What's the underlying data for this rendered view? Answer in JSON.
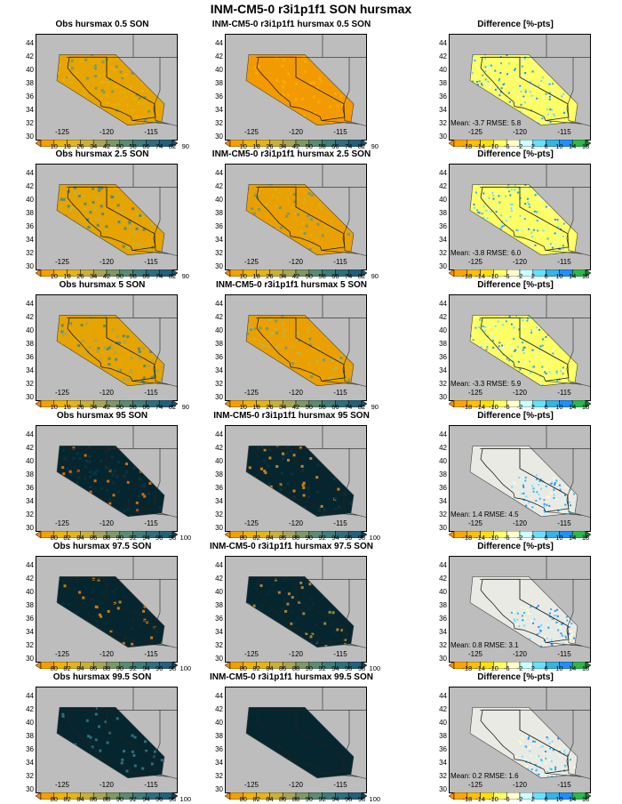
{
  "title": "INM-CM5-0 r3i1p1f1 SON hursmax",
  "lat_ticks": [
    "44",
    "42",
    "40",
    "38",
    "36",
    "34",
    "32",
    "30"
  ],
  "lon_ticks": [
    "-125",
    "-120",
    "-115"
  ],
  "scales": {
    "low": {
      "labels": [
        "10",
        "18",
        "26",
        "34",
        "42",
        "50",
        "58",
        "66",
        "74",
        "82",
        "90"
      ],
      "colors": [
        "#f08a00",
        "#f3a000",
        "#f2b400",
        "#e3b51b",
        "#c9b03a",
        "#a7a558",
        "#7e9867",
        "#5b8b72",
        "#3f7e7c",
        "#2f6f7d",
        "#24607a",
        "#1f5470"
      ]
    },
    "high": {
      "labels": [
        "80",
        "82",
        "84",
        "86",
        "88",
        "90",
        "92",
        "94",
        "96",
        "98",
        "100"
      ],
      "colors": [
        "#f08a00",
        "#f3a000",
        "#f2b400",
        "#e3b51b",
        "#c9b03a",
        "#a7a558",
        "#7e9867",
        "#5b8b72",
        "#3f7e7c",
        "#2f6f7d",
        "#24607a",
        "#163f4f"
      ]
    },
    "diff": {
      "labels": [
        "-18",
        "-14",
        "-10",
        "-6",
        "-2",
        "2",
        "6",
        "10",
        "14",
        "18"
      ],
      "colors": [
        "#ff8c00",
        "#ffa500",
        "#ffc000",
        "#ffe000",
        "#ffff66",
        "#ffffcc",
        "#ccffff",
        "#66e0ff",
        "#33b5e5",
        "#1e90ff",
        "#2db84d",
        "#1a7a2e"
      ]
    }
  },
  "rows": [
    {
      "obs_title": "Obs hursmax 0.5 SON",
      "model_title": "INM-CM5-0 r3i1p1f1 hursmax 0.5 SON",
      "diff_title": "Difference [%-pts]",
      "scale": "low",
      "obs_colors": [
        "#e8a500",
        "#e3b010",
        "#7c9a63"
      ],
      "model_colors": [
        "#f39a00",
        "#f7ad00",
        "#e7a010"
      ],
      "diff_fill": "#ffff66",
      "mean": "-3.7",
      "rmse": "5.8"
    },
    {
      "obs_title": "Obs hursmax 2.5 SON",
      "model_title": "INM-CM5-0 r3i1p1f1 hursmax 2.5 SON",
      "diff_title": "Difference [%-pts]",
      "scale": "low",
      "obs_colors": [
        "#e5a400",
        "#c9b03a",
        "#5b8b72"
      ],
      "model_colors": [
        "#eaa000",
        "#d9ad20",
        "#7e9867"
      ],
      "diff_fill": "#ffff66",
      "mean": "-3.8",
      "rmse": "6.0"
    },
    {
      "obs_title": "Obs hursmax 5 SON",
      "model_title": "INM-CM5-0 r3i1p1f1 hursmax 5 SON",
      "diff_title": "Difference [%-pts]",
      "scale": "low",
      "obs_colors": [
        "#e5a400",
        "#a7a558",
        "#5b8b72"
      ],
      "model_colors": [
        "#eaa000",
        "#c9b03a",
        "#7e9867"
      ],
      "diff_fill": "#ffff66",
      "mean": "-3.3",
      "rmse": "5.9"
    },
    {
      "obs_title": "Obs hursmax 95 SON",
      "model_title": "INM-CM5-0 r3i1p1f1 hursmax 95 SON",
      "diff_title": "Difference [%-pts]",
      "scale": "high",
      "obs_colors": [
        "#06262f",
        "#0a3340",
        "#d86a10"
      ],
      "model_colors": [
        "#06262f",
        "#0a3340",
        "#c9801a"
      ],
      "diff_fill": "#eaeae4",
      "mean": "1.4",
      "rmse": "4.5"
    },
    {
      "obs_title": "Obs hursmax 97.5 SON",
      "model_title": "INM-CM5-0 r3i1p1f1 hursmax 97.5 SON",
      "diff_title": "Difference [%-pts]",
      "scale": "high",
      "obs_colors": [
        "#06262f",
        "#082c37",
        "#c97a1a"
      ],
      "model_colors": [
        "#06262f",
        "#082c37",
        "#a7803a"
      ],
      "diff_fill": "#eaeae4",
      "mean": "0.8",
      "rmse": "3.1"
    },
    {
      "obs_title": "Obs hursmax 99.5 SON",
      "model_title": "INM-CM5-0 r3i1p1f1 hursmax 99.5 SON",
      "diff_title": "Difference [%-pts]",
      "scale": "high",
      "obs_colors": [
        "#06262f",
        "#06262f",
        "#2f6f7d"
      ],
      "model_colors": [
        "#06262f",
        "#06262f",
        "#06262f"
      ],
      "diff_fill": "#eaeae4",
      "mean": "0.2",
      "rmse": "1.6"
    }
  ],
  "stats_labels": {
    "mean": "Mean:",
    "rmse": "RMSE:"
  }
}
